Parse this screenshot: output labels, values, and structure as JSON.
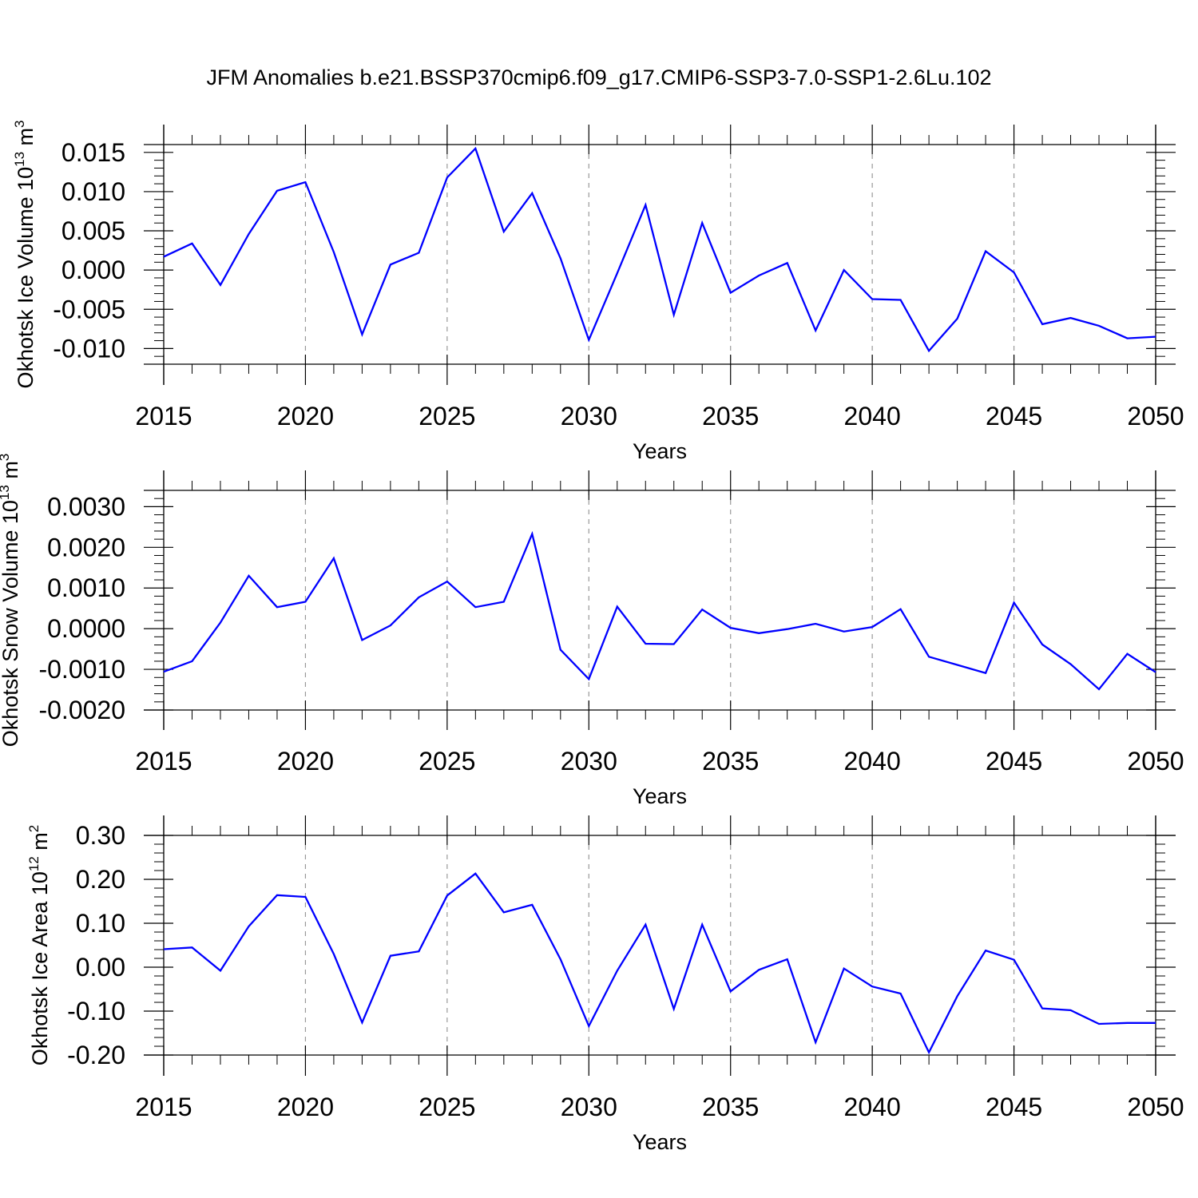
{
  "title": "JFM Anomalies b.e21.BSSP370cmip6.f09_g17.CMIP6-SSP3-7.0-SSP1-2.6Lu.102",
  "colors": {
    "series": "#0000ff",
    "axes": "#000000",
    "grid": "#999999"
  },
  "chart_data": [
    {
      "type": "line",
      "xlabel": "Years",
      "ylabel": {
        "text": "Okhotsk Ice Volume 10",
        "sup": "13",
        "unit": " m",
        "unit_sup": "3"
      },
      "xlim": [
        2015,
        2050
      ],
      "ylim": [
        -0.012,
        0.016
      ],
      "x_ticks": [
        2015,
        2020,
        2025,
        2030,
        2035,
        2040,
        2045,
        2050
      ],
      "y_ticks": [
        -0.01,
        -0.005,
        0.0,
        0.005,
        0.01,
        0.015
      ],
      "y_tick_labels": [
        "-0.010",
        "-0.005",
        "0.000",
        "0.005",
        "0.010",
        "0.015"
      ],
      "grid": "vertical dashed at major x ticks",
      "x": [
        2015,
        2016,
        2017,
        2018,
        2019,
        2020,
        2021,
        2022,
        2023,
        2024,
        2025,
        2026,
        2027,
        2028,
        2029,
        2030,
        2031,
        2032,
        2033,
        2034,
        2035,
        2036,
        2037,
        2038,
        2039,
        2040,
        2041,
        2042,
        2043,
        2044,
        2045,
        2046,
        2047,
        2048,
        2049,
        2050
      ],
      "values": [
        0.0017,
        0.0034,
        -0.0019,
        0.0046,
        0.0101,
        0.0112,
        0.0023,
        -0.0082,
        0.0007,
        0.0022,
        0.0118,
        0.0155,
        0.0049,
        0.0098,
        0.0015,
        -0.0089,
        -0.0004,
        0.0083,
        -0.0057,
        0.006,
        -0.0029,
        -0.0007,
        0.0009,
        -0.0077,
        0.0,
        -0.0037,
        -0.0038,
        -0.0103,
        -0.0062,
        0.0024,
        -0.0003,
        -0.0069,
        -0.0061,
        -0.0071,
        -0.0087,
        -0.0085
      ]
    },
    {
      "type": "line",
      "xlabel": "Years",
      "ylabel": {
        "text": "Okhotsk Snow Volume 10",
        "sup": "13",
        "unit": " m",
        "unit_sup": "3"
      },
      "xlim": [
        2015,
        2050
      ],
      "ylim": [
        -0.002,
        0.0034
      ],
      "x_ticks": [
        2015,
        2020,
        2025,
        2030,
        2035,
        2040,
        2045,
        2050
      ],
      "y_ticks": [
        -0.002,
        -0.001,
        0.0,
        0.001,
        0.002,
        0.003
      ],
      "y_tick_labels": [
        "-0.0020",
        "-0.0010",
        "0.0000",
        "0.0010",
        "0.0020",
        "0.0030"
      ],
      "grid": "vertical dashed at major x ticks",
      "x": [
        2015,
        2016,
        2017,
        2018,
        2019,
        2020,
        2021,
        2022,
        2023,
        2024,
        2025,
        2026,
        2027,
        2028,
        2029,
        2030,
        2031,
        2032,
        2033,
        2034,
        2035,
        2036,
        2037,
        2038,
        2039,
        2040,
        2041,
        2042,
        2043,
        2044,
        2045,
        2046,
        2047,
        2048,
        2049,
        2050
      ],
      "values": [
        -0.00106,
        -0.0008,
        0.00015,
        0.0013,
        0.00053,
        0.00066,
        0.00173,
        -0.00028,
        8e-05,
        0.00077,
        0.00116,
        0.00053,
        0.00066,
        0.00233,
        -0.00052,
        -0.00124,
        0.00054,
        -0.00037,
        -0.00038,
        0.00047,
        2e-05,
        -0.00011,
        -1e-05,
        0.00012,
        -7e-05,
        4e-05,
        0.00048,
        -0.00069,
        -0.00089,
        -0.00109,
        0.00064,
        -0.00039,
        -0.00087,
        -0.00149,
        -0.00062,
        -0.00107
      ]
    },
    {
      "type": "line",
      "xlabel": "Years",
      "ylabel": {
        "text": "Okhotsk Ice Area 10",
        "sup": "12",
        "unit": " m",
        "unit_sup": "2"
      },
      "xlim": [
        2015,
        2050
      ],
      "ylim": [
        -0.2,
        0.3
      ],
      "x_ticks": [
        2015,
        2020,
        2025,
        2030,
        2035,
        2040,
        2045,
        2050
      ],
      "y_ticks": [
        -0.2,
        -0.1,
        0.0,
        0.1,
        0.2,
        0.3
      ],
      "y_tick_labels": [
        "-0.20",
        "-0.10",
        "0.00",
        "0.10",
        "0.20",
        "0.30"
      ],
      "grid": "vertical dashed at major x ticks",
      "x": [
        2015,
        2016,
        2017,
        2018,
        2019,
        2020,
        2021,
        2022,
        2023,
        2024,
        2025,
        2026,
        2027,
        2028,
        2029,
        2030,
        2031,
        2032,
        2033,
        2034,
        2035,
        2036,
        2037,
        2038,
        2039,
        2040,
        2041,
        2042,
        2043,
        2044,
        2045,
        2046,
        2047,
        2048,
        2049,
        2050
      ],
      "values": [
        0.041,
        0.045,
        -0.008,
        0.093,
        0.164,
        0.16,
        0.03,
        -0.126,
        0.026,
        0.036,
        0.163,
        0.213,
        0.125,
        0.142,
        0.018,
        -0.134,
        -0.008,
        0.097,
        -0.095,
        0.097,
        -0.055,
        -0.006,
        0.018,
        -0.171,
        -0.003,
        -0.044,
        -0.06,
        -0.194,
        -0.066,
        0.038,
        0.017,
        -0.094,
        -0.098,
        -0.129,
        -0.127,
        -0.127
      ]
    }
  ]
}
